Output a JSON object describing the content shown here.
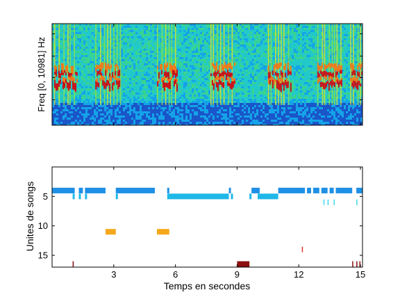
{
  "chart_data": [
    {
      "type": "heatmap",
      "ylabel": "Freq [0, 10981] Hz",
      "xlim": [
        0,
        15.1
      ],
      "y_freq_range_hz": [
        0,
        10981
      ],
      "colormap": [
        "#1a55c9",
        "#14a3e8",
        "#22c9c9",
        "#39d48f",
        "#8ee04a",
        "#d9e02a",
        "#f07a1a",
        "#c8141a"
      ],
      "song_bursts": [
        {
          "start": 0.1,
          "end": 1.2
        },
        {
          "start": 2.1,
          "end": 3.3
        },
        {
          "start": 5.1,
          "end": 6.1
        },
        {
          "start": 7.7,
          "end": 8.9
        },
        {
          "start": 10.5,
          "end": 11.6
        },
        {
          "start": 12.9,
          "end": 14.1
        },
        {
          "start": 14.5,
          "end": 15.1
        }
      ]
    },
    {
      "type": "scatter",
      "xlabel": "Temps en secondes",
      "ylabel": "Unites de songs",
      "xlim": [
        0,
        15.1
      ],
      "ylim": [
        17,
        0
      ],
      "xticks": [
        3,
        6,
        9,
        12,
        15
      ],
      "yticks": [
        5,
        10,
        15
      ],
      "units": [
        {
          "unit": 4,
          "color": "#1e90e6",
          "segments": [
            [
              0.0,
              1.1
            ],
            [
              1.3,
              1.5
            ],
            [
              1.6,
              2.6
            ],
            [
              3.1,
              5.0
            ],
            [
              5.6,
              5.7
            ],
            [
              8.6,
              8.7
            ],
            [
              9.7,
              10.1
            ],
            [
              11.0,
              12.3
            ],
            [
              12.4,
              12.6
            ],
            [
              12.7,
              13.0
            ],
            [
              13.1,
              13.4
            ],
            [
              13.5,
              13.7
            ],
            [
              13.8,
              14.6
            ],
            [
              14.8,
              15.1
            ]
          ]
        },
        {
          "unit": 5,
          "color": "#1fb8e8",
          "segments": [
            [
              1.0,
              1.1
            ],
            [
              1.3,
              1.4
            ],
            [
              1.6,
              1.7
            ],
            [
              3.1,
              3.2
            ],
            [
              5.6,
              8.6
            ],
            [
              8.7,
              8.8
            ],
            [
              9.6,
              9.7
            ],
            [
              10.0,
              11.0
            ]
          ]
        },
        {
          "unit": 6,
          "color": "#40d8e8",
          "segments": [
            [
              13.2,
              13.25
            ],
            [
              13.4,
              13.45
            ],
            [
              13.7,
              13.75
            ],
            [
              14.8,
              14.85
            ]
          ]
        },
        {
          "unit": 11,
          "color": "#f5a81c",
          "segments": [
            [
              2.6,
              3.1
            ],
            [
              5.1,
              5.7
            ]
          ]
        },
        {
          "unit": 14,
          "color": "#e6382a",
          "segments": [
            [
              12.15,
              12.2
            ]
          ]
        },
        {
          "unit": 16.5,
          "color": "#8a0f0f",
          "segments": [
            [
              1.0,
              1.05
            ],
            [
              9.0,
              9.6
            ],
            [
              14.6,
              14.65
            ],
            [
              14.8,
              14.85
            ],
            [
              14.95,
              15.0
            ]
          ]
        }
      ]
    }
  ]
}
